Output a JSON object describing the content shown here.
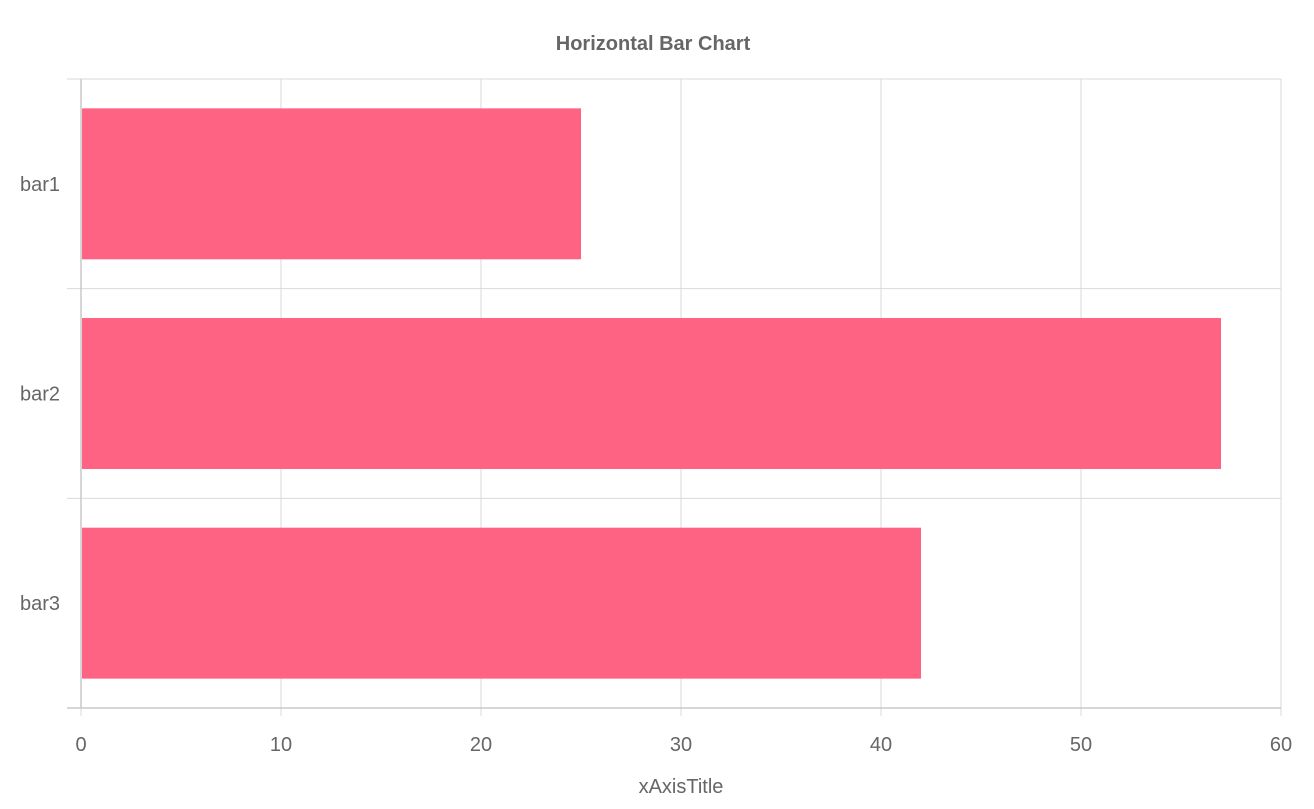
{
  "chart_data": {
    "type": "bar",
    "orientation": "horizontal",
    "title": "Horizontal Bar Chart",
    "xlabel": "xAxisTitle",
    "ylabel": "",
    "categories": [
      "bar1",
      "bar2",
      "bar3"
    ],
    "values": [
      25,
      57,
      42
    ],
    "xlim": [
      0,
      60
    ],
    "xticks": [
      0,
      10,
      20,
      30,
      40,
      50,
      60
    ],
    "grid": true,
    "legend": "none",
    "bar_color": "#ff6384"
  }
}
